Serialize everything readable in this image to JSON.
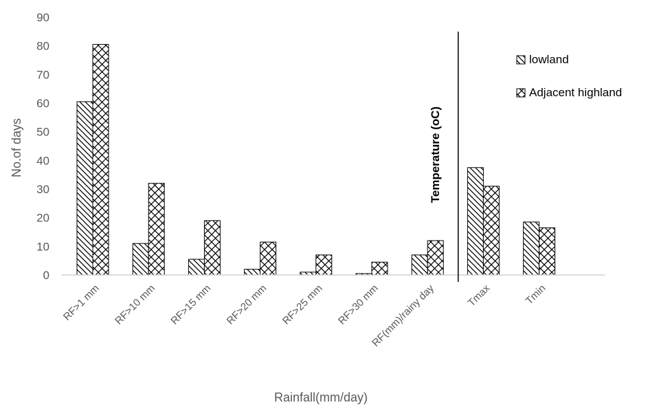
{
  "chart_data": {
    "type": "bar",
    "xlabel": "Rainfall(mm/day)",
    "ylabel": "No.of days",
    "secondary_label": "Temperature (oC)",
    "ylim": [
      0,
      90
    ],
    "yticks": [
      0,
      10,
      20,
      30,
      40,
      50,
      60,
      70,
      80,
      90
    ],
    "grid": false,
    "legend_position": "top-right",
    "categories": [
      "RF>1 mm",
      "RF>10 mm",
      "RF>15 mm",
      "RF>20 mm",
      "RF>25 mm",
      "RF>30 mm",
      "RF(mm)/rainy day",
      "Tmax",
      "Tmin"
    ],
    "series": [
      {
        "name": "lowland",
        "pattern": "backslash-hatch",
        "values": [
          60.5,
          11,
          5.5,
          2,
          1,
          0.5,
          7,
          37.5,
          18.5
        ]
      },
      {
        "name": "Adjacent highland",
        "pattern": "cross-hatch",
        "values": [
          80.5,
          32,
          19,
          11.5,
          7,
          4.5,
          12,
          31,
          16.5
        ]
      }
    ],
    "divider_after_category": 6
  }
}
